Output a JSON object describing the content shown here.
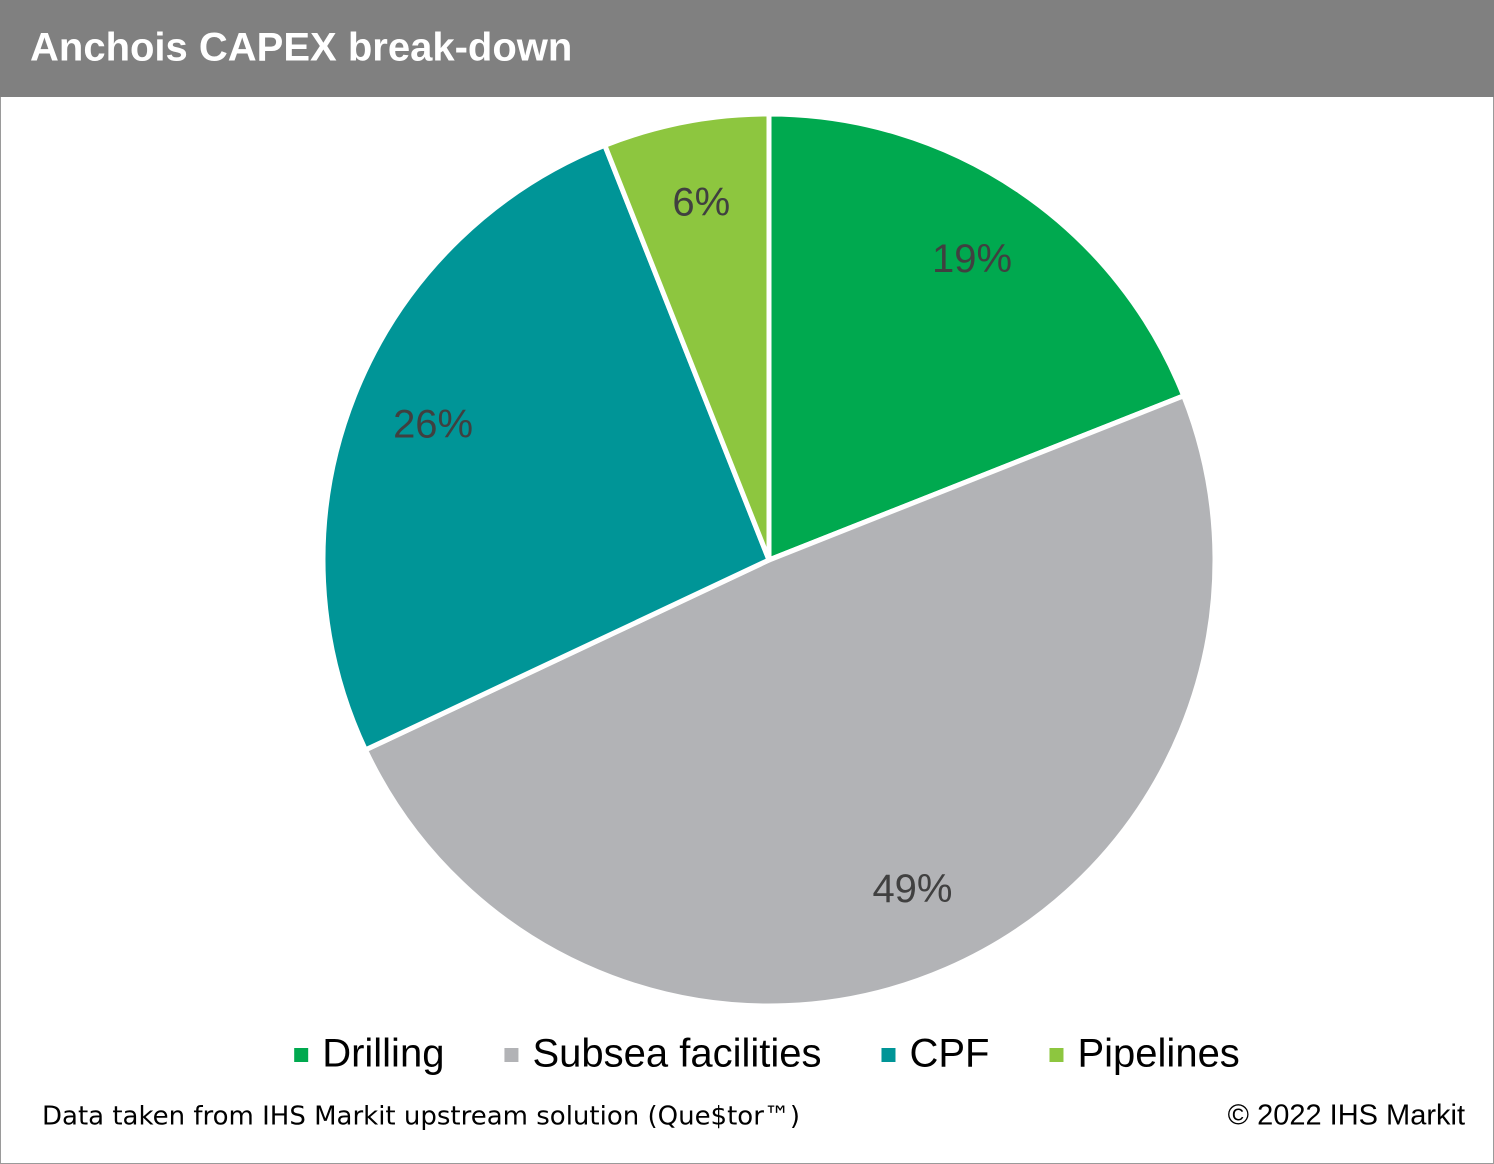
{
  "chart_data": {
    "type": "pie",
    "title": "Anchois CAPEX break-down",
    "categories": [
      "Drilling",
      "Subsea facilities",
      "CPF",
      "Pipelines"
    ],
    "values": [
      19,
      49,
      26,
      6
    ],
    "value_labels": [
      "19%",
      "49%",
      "26%",
      "6%"
    ],
    "colors": [
      "#00a94f",
      "#b2b3b6",
      "#009597",
      "#8dc63f"
    ],
    "legend": "bottom",
    "source": "Data taken from IHS Markit upstream solution (Que$tor™)",
    "copyright": "© 2022 IHS Markit"
  }
}
